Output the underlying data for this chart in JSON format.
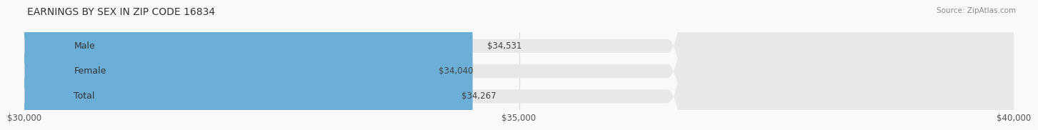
{
  "title": "EARNINGS BY SEX IN ZIP CODE 16834",
  "source": "Source: ZipAtlas.com",
  "categories": [
    "Male",
    "Female",
    "Total"
  ],
  "values": [
    34531,
    34040,
    34267
  ],
  "bar_colors": [
    "#6baed6",
    "#f4b8c8",
    "#f9c98a"
  ],
  "track_color": "#e8e8e8",
  "xmin": 30000,
  "xmax": 40000,
  "xticks": [
    30000,
    35000,
    40000
  ],
  "xtick_labels": [
    "$30,000",
    "$35,000",
    "$40,000"
  ],
  "value_labels": [
    "$34,531",
    "$34,040",
    "$34,267"
  ],
  "bar_height": 0.55,
  "background_color": "#f9f9f9",
  "title_fontsize": 10,
  "label_fontsize": 9,
  "value_fontsize": 8.5,
  "tick_fontsize": 8.5,
  "source_fontsize": 7.5
}
